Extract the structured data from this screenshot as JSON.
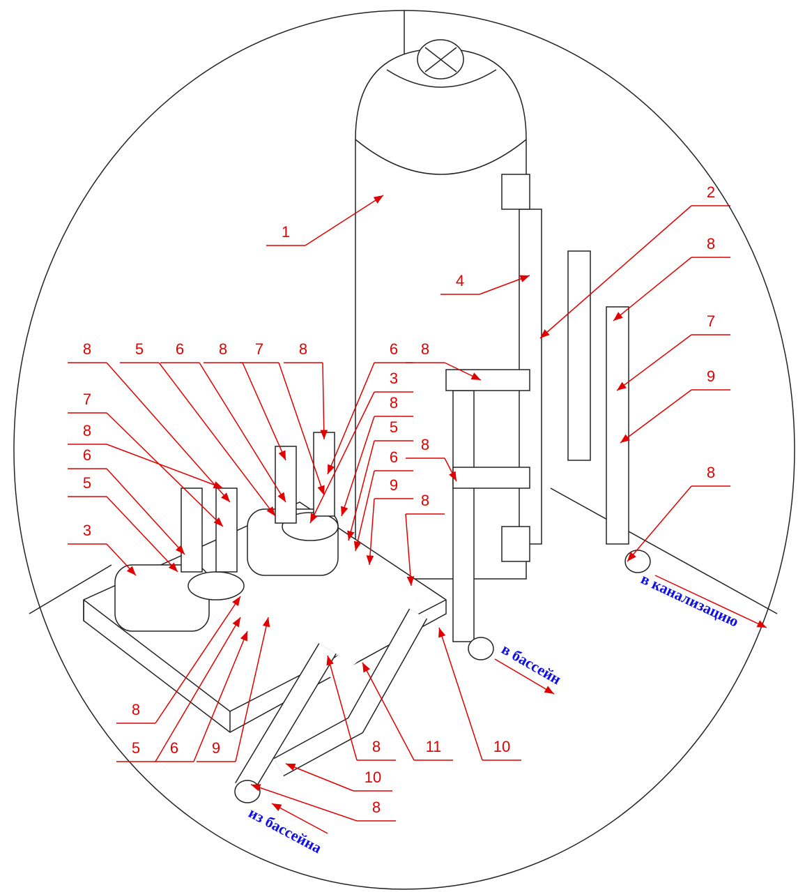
{
  "callouts": [
    "1",
    "2",
    "8",
    "4",
    "7",
    "9",
    "8",
    "8",
    "8",
    "8",
    "8",
    "5",
    "6",
    "8",
    "7",
    "8",
    "6",
    "3",
    "8",
    "5",
    "6",
    "9",
    "7",
    "8",
    "6",
    "5",
    "3",
    "8",
    "5",
    "6",
    "9",
    "8",
    "11",
    "10",
    "10",
    "8"
  ],
  "flows": [
    "в бассейн",
    "в канализацию",
    "из бассейна"
  ]
}
